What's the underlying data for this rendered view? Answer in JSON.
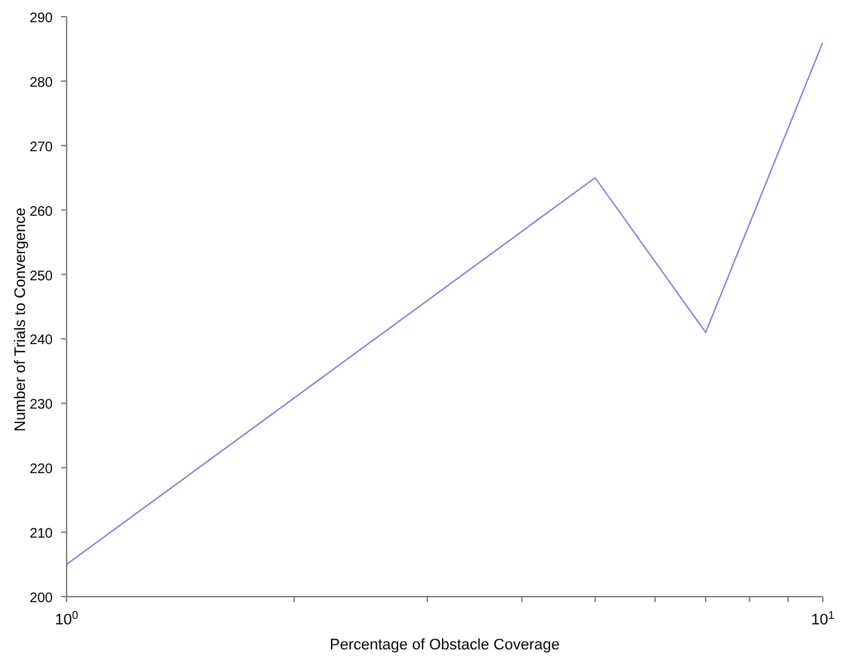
{
  "chart_data": {
    "type": "line",
    "xlabel": "Percentage of Obstacle Coverage",
    "ylabel": "Number of Trials to Convergence",
    "x": [
      1,
      5,
      7,
      10
    ],
    "series": [
      {
        "color": "#7f7fe6",
        "values": [
          205,
          265,
          241,
          286
        ]
      }
    ],
    "log": "x",
    "marker": "none",
    "line_style": "solid",
    "grid": false,
    "legend": false,
    "xlim": [
      1,
      10
    ],
    "xticks": [
      {
        "value": 1,
        "label": "10$^{0}$"
      },
      {
        "value": 2,
        "label": null
      },
      {
        "value": 3,
        "label": null
      },
      {
        "value": 4,
        "label": null
      },
      {
        "value": 5,
        "label": null
      },
      {
        "value": 6,
        "label": null
      },
      {
        "value": 7,
        "label": null
      },
      {
        "value": 8,
        "label": null
      },
      {
        "value": 9,
        "label": null
      },
      {
        "value": 10,
        "label": "10$^{1}$"
      }
    ],
    "ylim": [
      200,
      290
    ],
    "yticks": [
      200,
      210,
      220,
      230,
      240,
      250,
      260,
      270,
      280,
      290
    ]
  }
}
